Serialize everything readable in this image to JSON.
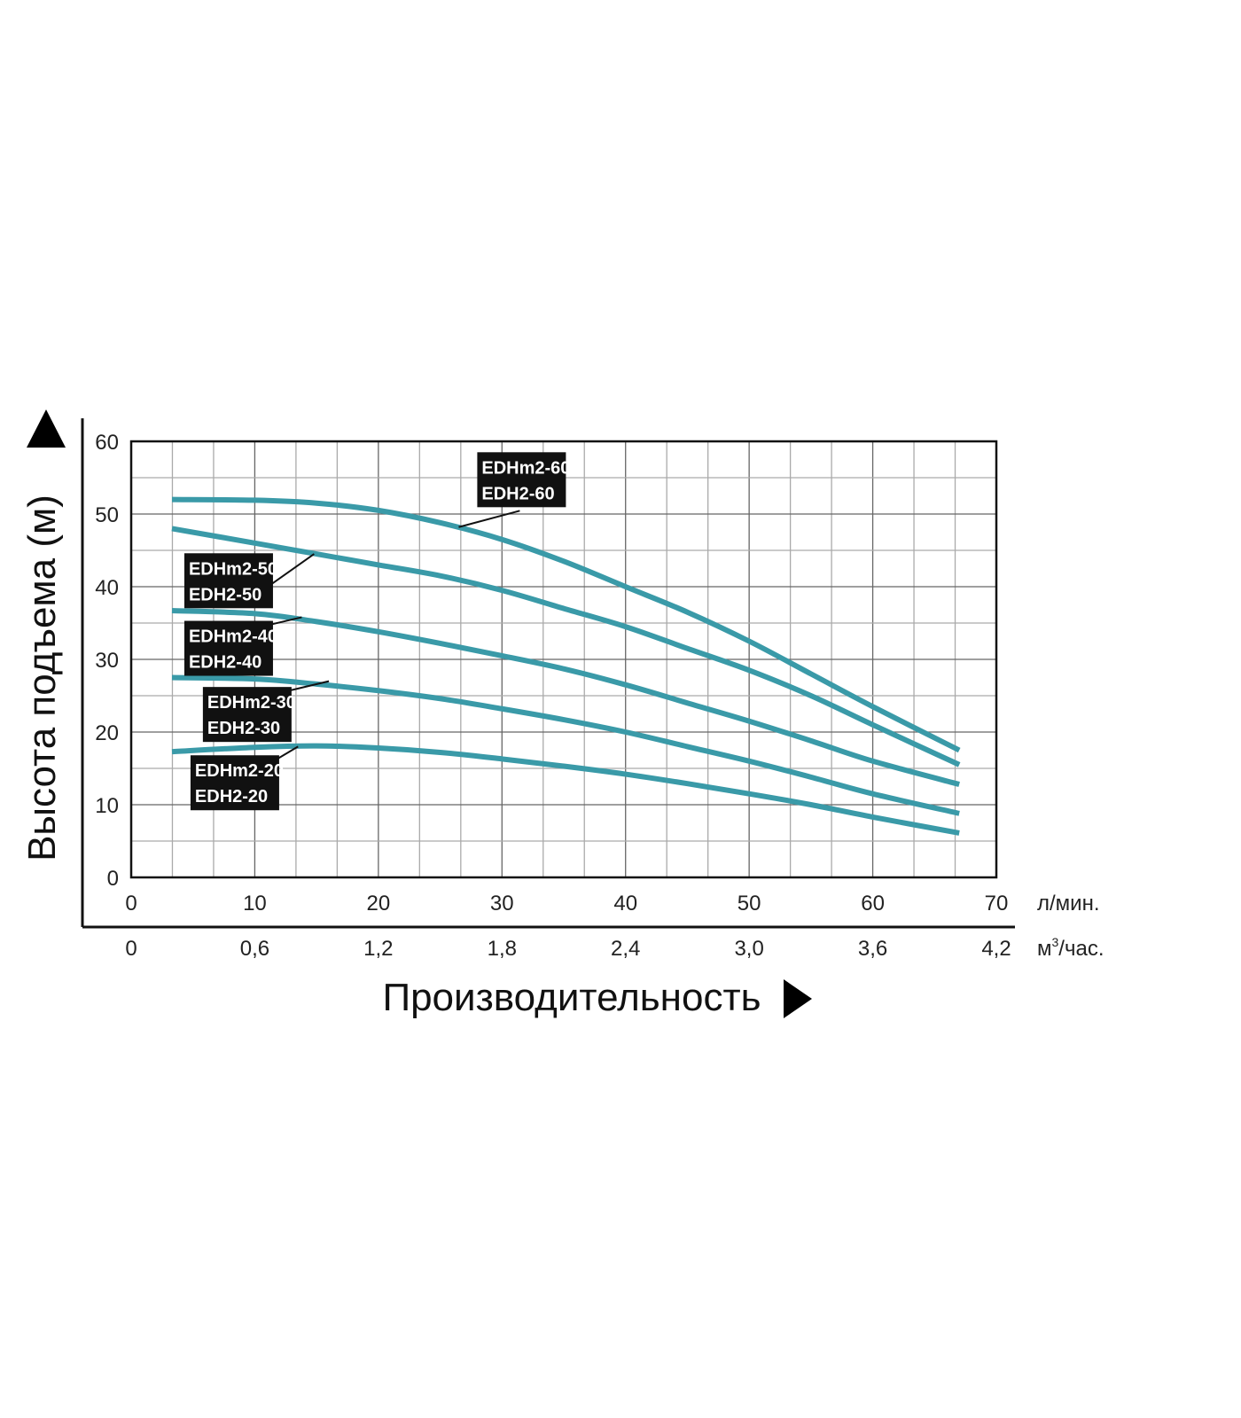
{
  "chart_data": {
    "type": "line",
    "ylabel": "Высота подъема (м)",
    "xlabel": "Производительность",
    "x_unit_primary": "л/мин.",
    "x_unit_secondary_base": "м",
    "x_unit_secondary_sup": "3",
    "x_unit_secondary_rest": "/час.",
    "xlim": [
      0,
      70
    ],
    "ylim": [
      0,
      60
    ],
    "x_ticks": [
      0,
      10,
      20,
      30,
      40,
      50,
      60,
      70
    ],
    "x_tick_labels": [
      "0",
      "10",
      "20",
      "30",
      "40",
      "50",
      "60",
      "70"
    ],
    "x2_tick_labels": [
      "0",
      "0,6",
      "1,2",
      "1,8",
      "2,4",
      "3,0",
      "3,6",
      "4,2"
    ],
    "y_ticks": [
      0,
      10,
      20,
      30,
      40,
      50,
      60
    ],
    "y_tick_labels": [
      "0",
      "10",
      "20",
      "30",
      "40",
      "50",
      "60"
    ],
    "grid": true,
    "line_color": "#3a9aa8",
    "series": [
      {
        "name": "EDHm2-60 EDH2-60",
        "label_lines": [
          "EDHm2-60",
          "EDH2-60"
        ],
        "x": [
          3.3,
          10,
          15,
          20,
          25,
          30,
          35,
          40,
          45,
          50,
          55,
          60,
          67
        ],
        "values": [
          52,
          51.9,
          51.5,
          50.5,
          48.8,
          46.5,
          43.5,
          40,
          36.5,
          32.5,
          28,
          23.5,
          17.5
        ],
        "anchor": [
          26.5,
          48.2
        ],
        "box": [
          28,
          58.5
        ]
      },
      {
        "name": "EDHm2-50 EDH2-50",
        "label_lines": [
          "EDHm2-50",
          "EDH2-50"
        ],
        "x": [
          3.3,
          10,
          15,
          20,
          25,
          30,
          35,
          40,
          45,
          50,
          55,
          60,
          67
        ],
        "values": [
          48,
          46,
          44.5,
          43,
          41.5,
          39.5,
          37,
          34.5,
          31.5,
          28.5,
          25,
          21,
          15.5
        ],
        "anchor": [
          14.8,
          44.5
        ],
        "box": [
          4.3,
          44.6
        ]
      },
      {
        "name": "EDHm2-40 EDH2-40",
        "label_lines": [
          "EDHm2-40",
          "EDH2-40"
        ],
        "x": [
          3.3,
          10,
          15,
          20,
          25,
          30,
          35,
          40,
          45,
          50,
          55,
          60,
          67
        ],
        "values": [
          36.7,
          36.3,
          35.2,
          33.8,
          32.2,
          30.5,
          28.7,
          26.5,
          24,
          21.5,
          18.8,
          16,
          12.8
        ],
        "anchor": [
          13.8,
          35.8
        ],
        "box": [
          4.3,
          35.3
        ]
      },
      {
        "name": "EDHm2-30 EDH2-30",
        "label_lines": [
          "EDHm2-30",
          "EDH2-30"
        ],
        "x": [
          3.3,
          10,
          15,
          20,
          25,
          30,
          35,
          40,
          45,
          50,
          55,
          60,
          67
        ],
        "values": [
          27.5,
          27.3,
          26.6,
          25.7,
          24.6,
          23.2,
          21.7,
          20,
          18,
          16,
          13.8,
          11.5,
          8.8
        ],
        "anchor": [
          16,
          27
        ],
        "box": [
          5.8,
          26.2
        ]
      },
      {
        "name": "EDHm2-20 EDH2-20",
        "label_lines": [
          "EDHm2-20",
          "EDH2-20"
        ],
        "x": [
          3.3,
          10,
          15,
          20,
          25,
          30,
          35,
          40,
          45,
          50,
          55,
          60,
          67
        ],
        "values": [
          17.3,
          17.9,
          18.1,
          17.8,
          17.2,
          16.3,
          15.3,
          14.2,
          12.9,
          11.5,
          10,
          8.3,
          6.1
        ],
        "anchor": [
          13.5,
          18
        ],
        "box": [
          4.8,
          16.8
        ]
      }
    ]
  }
}
